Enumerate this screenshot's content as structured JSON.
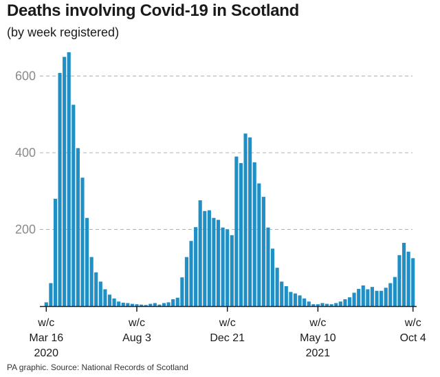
{
  "header": {
    "title": "Deaths involving Covid-19 in Scotland",
    "subtitle": "(by week registered)"
  },
  "footer": {
    "source": "PA graphic. Source: National Records of Scotland"
  },
  "colors": {
    "bar": "#1f8fc6",
    "grid": "#b0b0b0",
    "axis": "#1a1a1a",
    "tick_label": "#8a8a8a"
  },
  "chart_data": {
    "type": "bar",
    "title": "Deaths involving Covid-19 in Scotland",
    "subtitle": "(by week registered)",
    "xlabel": "",
    "ylabel": "",
    "ylim": [
      0,
      680
    ],
    "yticks": [
      200,
      400,
      600
    ],
    "grid": "horizontal dashed",
    "x_labels": [
      {
        "index": 0,
        "lines": [
          "w/c",
          "Mar 16",
          "2020"
        ]
      },
      {
        "index": 20,
        "lines": [
          "w/c",
          "Aug 3",
          ""
        ]
      },
      {
        "index": 40,
        "lines": [
          "w/c",
          "Dec 21",
          ""
        ]
      },
      {
        "index": 60,
        "lines": [
          "w/c",
          "May 10",
          "2021"
        ]
      },
      {
        "index": 81,
        "lines": [
          "w/c",
          "Oct 4",
          ""
        ]
      }
    ],
    "values": [
      10,
      60,
      280,
      608,
      650,
      662,
      525,
      412,
      335,
      230,
      128,
      88,
      64,
      44,
      30,
      20,
      12,
      9,
      8,
      6,
      5,
      4,
      3,
      6,
      8,
      4,
      8,
      10,
      18,
      22,
      75,
      128,
      170,
      206,
      276,
      248,
      250,
      230,
      225,
      205,
      200,
      185,
      390,
      373,
      450,
      440,
      375,
      320,
      285,
      205,
      150,
      100,
      64,
      52,
      37,
      33,
      28,
      20,
      12,
      5,
      5,
      8,
      6,
      5,
      8,
      12,
      18,
      23,
      35,
      45,
      54,
      44,
      50,
      40,
      40,
      48,
      60,
      76,
      133,
      165,
      142,
      125
    ]
  }
}
